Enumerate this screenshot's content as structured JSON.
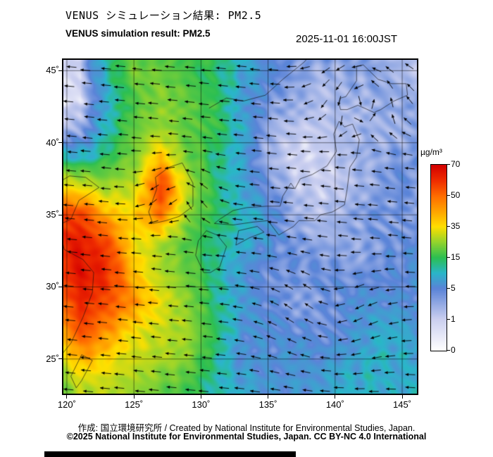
{
  "header": {
    "title_jp": "VENUS シミュレーション結果: PM2.5",
    "title_en": "VENUS simulation result: PM2.5",
    "timestamp": "2025-11-01 16:00JST"
  },
  "footer": {
    "credit": "作成: 国立環境研究所 / Created by National Institute for Environmental Studies, Japan.",
    "license": "©2025 National Institute for Environmental Studies, Japan. CC BY-NC 4.0 International"
  },
  "colorbar": {
    "unit": "µg/m³",
    "ticks": [
      0,
      1,
      5,
      15,
      35,
      50,
      70
    ]
  },
  "chart_data": {
    "type": "heatmap",
    "title": "VENUS simulation result: PM2.5",
    "title_jp": "VENUS シミュレーション結果: PM2.5",
    "timestamp": "2025-11-01 16:00JST",
    "unit": "µg/m³",
    "scale_breaks": [
      0,
      1,
      5,
      15,
      35,
      50,
      70
    ],
    "color_stops": [
      {
        "p": 0.0,
        "c": "#ffffff"
      },
      {
        "p": 0.1667,
        "c": "#ccd0f0"
      },
      {
        "p": 0.3333,
        "c": "#5b84d8"
      },
      {
        "p": 0.4167,
        "c": "#2ab6c9"
      },
      {
        "p": 0.5,
        "c": "#2cbf52"
      },
      {
        "p": 0.5833,
        "c": "#93d42e"
      },
      {
        "p": 0.6667,
        "c": "#ffdf00"
      },
      {
        "p": 0.75,
        "c": "#ffa400"
      },
      {
        "p": 0.8333,
        "c": "#ff6d00"
      },
      {
        "p": 0.9167,
        "c": "#ef2c00"
      },
      {
        "p": 1.0,
        "c": "#d40000"
      }
    ],
    "lon_ticks": [
      120,
      125,
      130,
      135,
      140,
      145
    ],
    "lat_ticks": [
      25,
      30,
      35,
      40,
      45
    ],
    "lon_range": [
      119.74,
      146.1
    ],
    "lat_range": [
      22.6,
      45.75
    ],
    "grid_lons": [
      119,
      121,
      123,
      125,
      127,
      129,
      131,
      133,
      135,
      137,
      139,
      141,
      143,
      145,
      147
    ],
    "grid_lats": [
      47,
      45,
      43,
      41,
      39,
      37,
      35,
      33,
      31,
      29,
      27,
      25,
      23
    ],
    "pm25": [
      [
        1,
        1.5,
        14,
        20,
        18,
        16,
        14,
        10,
        7,
        5,
        4,
        4,
        3,
        3,
        3
      ],
      [
        0.6,
        1,
        12,
        22,
        20,
        17,
        15,
        9,
        5,
        4,
        3,
        3,
        3,
        2,
        2
      ],
      [
        0.4,
        0.7,
        8,
        18,
        24,
        20,
        16,
        8,
        4,
        2.5,
        2,
        3,
        3,
        3,
        3
      ],
      [
        1.5,
        3,
        10,
        20,
        26,
        20,
        16,
        9,
        3.5,
        1.5,
        1.2,
        2,
        3,
        3,
        3
      ],
      [
        12,
        9,
        14,
        22,
        40,
        22,
        13,
        7,
        2.5,
        1.2,
        1,
        2,
        3,
        4,
        4
      ],
      [
        35,
        30,
        26,
        30,
        58,
        28,
        14,
        9,
        4,
        1.5,
        1.2,
        2,
        3,
        4,
        4
      ],
      [
        55,
        58,
        42,
        36,
        48,
        24,
        16,
        11,
        6,
        2.5,
        2,
        3,
        4,
        4,
        4
      ],
      [
        60,
        66,
        55,
        33,
        28,
        19,
        13,
        9,
        6,
        4,
        3,
        3,
        4,
        5,
        5
      ],
      [
        55,
        66,
        60,
        40,
        28,
        21,
        11,
        7,
        5,
        4,
        4,
        4,
        5,
        5,
        5
      ],
      [
        45,
        62,
        56,
        45,
        33,
        24,
        13,
        7,
        5,
        4,
        4,
        5,
        6,
        6,
        6
      ],
      [
        34,
        55,
        46,
        35,
        29,
        26,
        16,
        7,
        5,
        5,
        5,
        6,
        8,
        8,
        7
      ],
      [
        24,
        42,
        36,
        30,
        27,
        23,
        13,
        7,
        6,
        6,
        6,
        8,
        10,
        9,
        8
      ],
      [
        18,
        30,
        28,
        24,
        21,
        18,
        11,
        8,
        7,
        7,
        7,
        9,
        10,
        10,
        9
      ]
    ],
    "wind": {
      "base_u": -1.3,
      "base_v": 0.12,
      "vortices": [
        {
          "lon": 142.2,
          "lat": 44.0,
          "s": 3.0,
          "r": 2.0
        },
        {
          "lon": 128.4,
          "lat": 36.6,
          "s": 1.8,
          "r": 1.5
        },
        {
          "lon": 139.5,
          "lat": 27.5,
          "s": -1.1,
          "r": 2.6
        }
      ]
    },
    "coastlines": [
      [
        [
          126.4,
          34.4
        ],
        [
          126.1,
          35.2
        ],
        [
          126.7,
          36.8
        ],
        [
          126.6,
          37.6
        ],
        [
          127.6,
          38.3
        ],
        [
          128.6,
          38.6
        ],
        [
          129.4,
          37.2
        ],
        [
          129.4,
          35.6
        ],
        [
          128.4,
          34.9
        ],
        [
          127.4,
          34.6
        ],
        [
          126.4,
          34.4
        ]
      ],
      [
        [
          130.2,
          31.0
        ],
        [
          129.6,
          32.2
        ],
        [
          129.8,
          33.2
        ],
        [
          130.4,
          33.9
        ],
        [
          131.2,
          33.6
        ],
        [
          131.9,
          32.8
        ],
        [
          131.4,
          31.4
        ],
        [
          130.7,
          31.0
        ],
        [
          130.2,
          31.0
        ]
      ],
      [
        [
          132.6,
          32.9
        ],
        [
          132.8,
          33.9
        ],
        [
          134.2,
          34.2
        ],
        [
          134.7,
          33.8
        ],
        [
          133.6,
          33.4
        ],
        [
          132.6,
          32.9
        ]
      ],
      [
        [
          131.0,
          34.4
        ],
        [
          132.4,
          34.3
        ],
        [
          133.9,
          34.5
        ],
        [
          135.0,
          34.6
        ],
        [
          135.8,
          33.6
        ],
        [
          136.9,
          34.2
        ],
        [
          137.3,
          34.6
        ],
        [
          138.5,
          34.6
        ],
        [
          138.9,
          35.0
        ],
        [
          139.8,
          35.2
        ],
        [
          140.7,
          35.7
        ],
        [
          140.9,
          36.8
        ],
        [
          141.1,
          38.3
        ],
        [
          141.6,
          39.0
        ],
        [
          141.8,
          40.2
        ],
        [
          141.3,
          41.3
        ],
        [
          140.7,
          41.1
        ],
        [
          140.3,
          41.5
        ],
        [
          139.9,
          40.6
        ],
        [
          140.1,
          39.4
        ],
        [
          139.4,
          38.4
        ],
        [
          138.3,
          37.8
        ],
        [
          137.4,
          37.5
        ],
        [
          137.0,
          36.8
        ],
        [
          136.7,
          37.2
        ],
        [
          136.1,
          36.3
        ],
        [
          135.9,
          35.6
        ],
        [
          134.9,
          35.6
        ],
        [
          133.4,
          35.5
        ],
        [
          132.4,
          35.3
        ],
        [
          131.4,
          34.7
        ],
        [
          131.0,
          34.4
        ]
      ],
      [
        [
          140.4,
          42.3
        ],
        [
          140.9,
          42.3
        ],
        [
          141.7,
          42.6
        ],
        [
          142.9,
          42.1
        ],
        [
          143.4,
          42.3
        ],
        [
          144.4,
          42.9
        ],
        [
          145.4,
          43.3
        ],
        [
          145.3,
          44.1
        ],
        [
          144.2,
          44.1
        ],
        [
          143.2,
          44.4
        ],
        [
          142.1,
          45.4
        ],
        [
          141.6,
          45.3
        ],
        [
          141.6,
          44.3
        ],
        [
          140.8,
          43.2
        ],
        [
          140.4,
          43.1
        ],
        [
          140.3,
          42.7
        ],
        [
          140.4,
          42.3
        ]
      ],
      [
        [
          119.0,
          24.6
        ],
        [
          120.3,
          26.1
        ],
        [
          121.2,
          27.9
        ],
        [
          121.9,
          29.6
        ],
        [
          122.0,
          31.0
        ],
        [
          121.2,
          31.9
        ],
        [
          119.8,
          32.6
        ],
        [
          119.4,
          34.3
        ],
        [
          120.3,
          34.7
        ],
        [
          120.9,
          36.0
        ],
        [
          122.4,
          36.9
        ],
        [
          121.4,
          37.6
        ],
        [
          120.2,
          37.7
        ],
        [
          119.3,
          37.2
        ]
      ],
      [
        [
          120.7,
          23.0
        ],
        [
          121.1,
          23.5
        ],
        [
          121.9,
          24.9
        ],
        [
          121.1,
          25.3
        ],
        [
          120.3,
          23.8
        ],
        [
          120.7,
          23.0
        ]
      ],
      [
        [
          130.6,
          42.4
        ],
        [
          131.9,
          43.1
        ],
        [
          133.2,
          42.9
        ],
        [
          134.8,
          43.3
        ],
        [
          136.1,
          44.4
        ],
        [
          137.7,
          45.6
        ],
        [
          138.6,
          46.6
        ],
        [
          139.0,
          47.0
        ]
      ],
      [
        [
          141.9,
          45.9
        ],
        [
          142.2,
          46.6
        ],
        [
          142.6,
          47.0
        ],
        [
          142.0,
          47.0
        ],
        [
          141.8,
          46.3
        ],
        [
          141.9,
          45.9
        ]
      ]
    ]
  }
}
